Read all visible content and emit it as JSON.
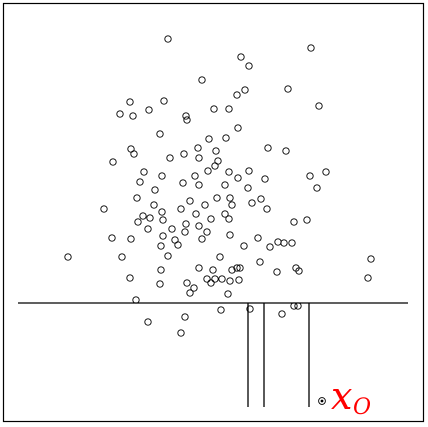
{
  "diagram": {
    "labels": {
      "query_point_main": "x",
      "query_point_sub": "O"
    },
    "colors": {
      "points": "#000000",
      "lines": "#000000",
      "label": "#ff0000",
      "background": "#ffffff"
    }
  }
}
